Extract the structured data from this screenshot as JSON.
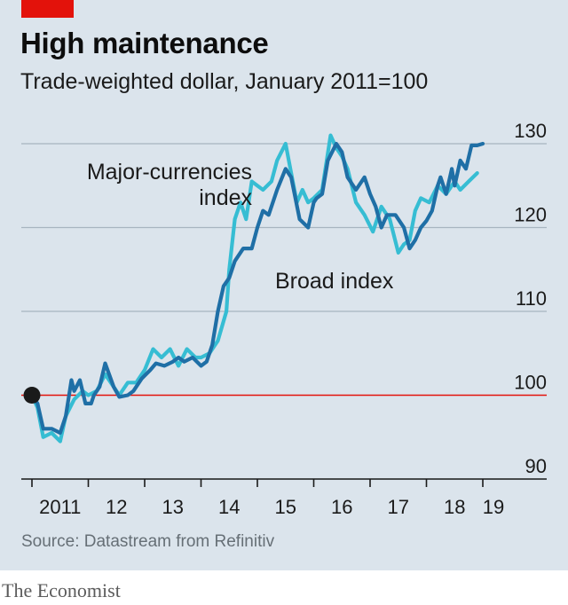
{
  "header": {
    "title": "High maintenance",
    "subtitle": "Trade-weighted dollar, January 2011=100"
  },
  "footer": {
    "source": "Source: Datastream from Refinitiv",
    "brand": "The Economist"
  },
  "colors": {
    "broad": "#1f6fa6",
    "major": "#36bdd3",
    "reference": "#e3120b",
    "background": "#dbe4ec",
    "accent": "#e3120b"
  },
  "chart_data": {
    "type": "line",
    "title": "High maintenance",
    "subtitle": "Trade-weighted dollar, January 2011=100",
    "xlabel": "",
    "ylabel": "",
    "ylim": [
      90,
      130
    ],
    "xlim": [
      2011.0,
      2019.2
    ],
    "yticks": [
      90,
      100,
      110,
      120,
      130
    ],
    "xtick_labels": [
      "2011",
      "12",
      "13",
      "14",
      "15",
      "16",
      "17",
      "18",
      "19"
    ],
    "grid": true,
    "reference_line": 100,
    "start_marker": {
      "x": 2011.0,
      "y": 100
    },
    "annotations": [
      {
        "text_lines": [
          "Major-currencies",
          "index"
        ],
        "series": "Major-currencies index"
      },
      {
        "text_lines": [
          "Broad index"
        ],
        "series": "Broad index"
      }
    ],
    "series": [
      {
        "name": "Broad index",
        "x": [
          2011.0,
          2011.1,
          2011.2,
          2011.35,
          2011.5,
          2011.6,
          2011.7,
          2011.75,
          2011.85,
          2011.95,
          2012.05,
          2012.1,
          2012.2,
          2012.3,
          2012.45,
          2012.55,
          2012.7,
          2012.8,
          2012.95,
          2013.1,
          2013.2,
          2013.35,
          2013.5,
          2013.6,
          2013.7,
          2013.85,
          2014.0,
          2014.1,
          2014.2,
          2014.3,
          2014.4,
          2014.5,
          2014.6,
          2014.75,
          2014.9,
          2015.0,
          2015.1,
          2015.2,
          2015.35,
          2015.5,
          2015.6,
          2015.75,
          2015.9,
          2016.0,
          2016.05,
          2016.15,
          2016.25,
          2016.4,
          2016.5,
          2016.6,
          2016.75,
          2016.9,
          2017.0,
          2017.1,
          2017.2,
          2017.3,
          2017.45,
          2017.6,
          2017.7,
          2017.8,
          2017.9,
          2018.0,
          2018.1,
          2018.2,
          2018.25,
          2018.35,
          2018.45,
          2018.5,
          2018.6,
          2018.7,
          2018.8,
          2018.9,
          2019.0
        ],
        "values": [
          100.0,
          99.0,
          96.0,
          96.0,
          95.5,
          97.5,
          101.8,
          100.5,
          101.8,
          99.0,
          99.0,
          100.0,
          101.0,
          103.8,
          101.0,
          99.8,
          100.0,
          100.5,
          102.0,
          103.0,
          103.8,
          103.5,
          104.0,
          104.5,
          104.0,
          104.5,
          103.5,
          104.0,
          106.0,
          110.0,
          113.0,
          114.0,
          116.0,
          117.5,
          117.5,
          120.0,
          122.0,
          121.5,
          124.5,
          127.0,
          126.0,
          121.0,
          120.0,
          123.0,
          123.5,
          124.0,
          128.0,
          130.0,
          129.0,
          126.0,
          124.5,
          126.0,
          124.0,
          122.5,
          120.0,
          121.5,
          121.5,
          120.0,
          117.5,
          118.5,
          120.0,
          120.8,
          122.0,
          125.0,
          126.0,
          124.0,
          127.0,
          125.0,
          128.0,
          127.0,
          129.8,
          129.8,
          130.0
        ]
      },
      {
        "name": "Major-currencies index",
        "x": [
          2011.0,
          2011.1,
          2011.2,
          2011.35,
          2011.5,
          2011.6,
          2011.75,
          2011.9,
          2012.0,
          2012.15,
          2012.3,
          2012.45,
          2012.55,
          2012.7,
          2012.85,
          2013.0,
          2013.15,
          2013.3,
          2013.45,
          2013.6,
          2013.75,
          2013.9,
          2014.0,
          2014.15,
          2014.3,
          2014.45,
          2014.5,
          2014.6,
          2014.7,
          2014.8,
          2014.9,
          2015.0,
          2015.1,
          2015.25,
          2015.35,
          2015.5,
          2015.6,
          2015.7,
          2015.8,
          2015.9,
          2016.0,
          2016.15,
          2016.3,
          2016.4,
          2016.5,
          2016.6,
          2016.75,
          2016.9,
          2017.05,
          2017.2,
          2017.35,
          2017.5,
          2017.6,
          2017.7,
          2017.8,
          2017.9,
          2018.05,
          2018.2,
          2018.35,
          2018.5,
          2018.6,
          2018.75,
          2018.9
        ],
        "values": [
          100.0,
          98.5,
          95.0,
          95.5,
          94.5,
          97.5,
          99.5,
          100.5,
          100.0,
          100.5,
          102.5,
          101.0,
          100.0,
          101.5,
          101.5,
          103.0,
          105.5,
          104.5,
          105.5,
          103.5,
          105.5,
          104.5,
          104.5,
          105.0,
          106.5,
          110.0,
          115.0,
          121.0,
          123.0,
          121.0,
          125.5,
          125.0,
          124.5,
          125.5,
          128.0,
          130.0,
          126.5,
          123.0,
          124.5,
          123.0,
          123.5,
          124.5,
          131.0,
          129.5,
          128.5,
          127.0,
          123.0,
          121.5,
          119.5,
          122.5,
          121.0,
          117.0,
          118.0,
          118.5,
          122.0,
          123.5,
          123.0,
          125.0,
          124.0,
          125.5,
          124.5,
          125.5,
          126.5
        ]
      }
    ]
  }
}
